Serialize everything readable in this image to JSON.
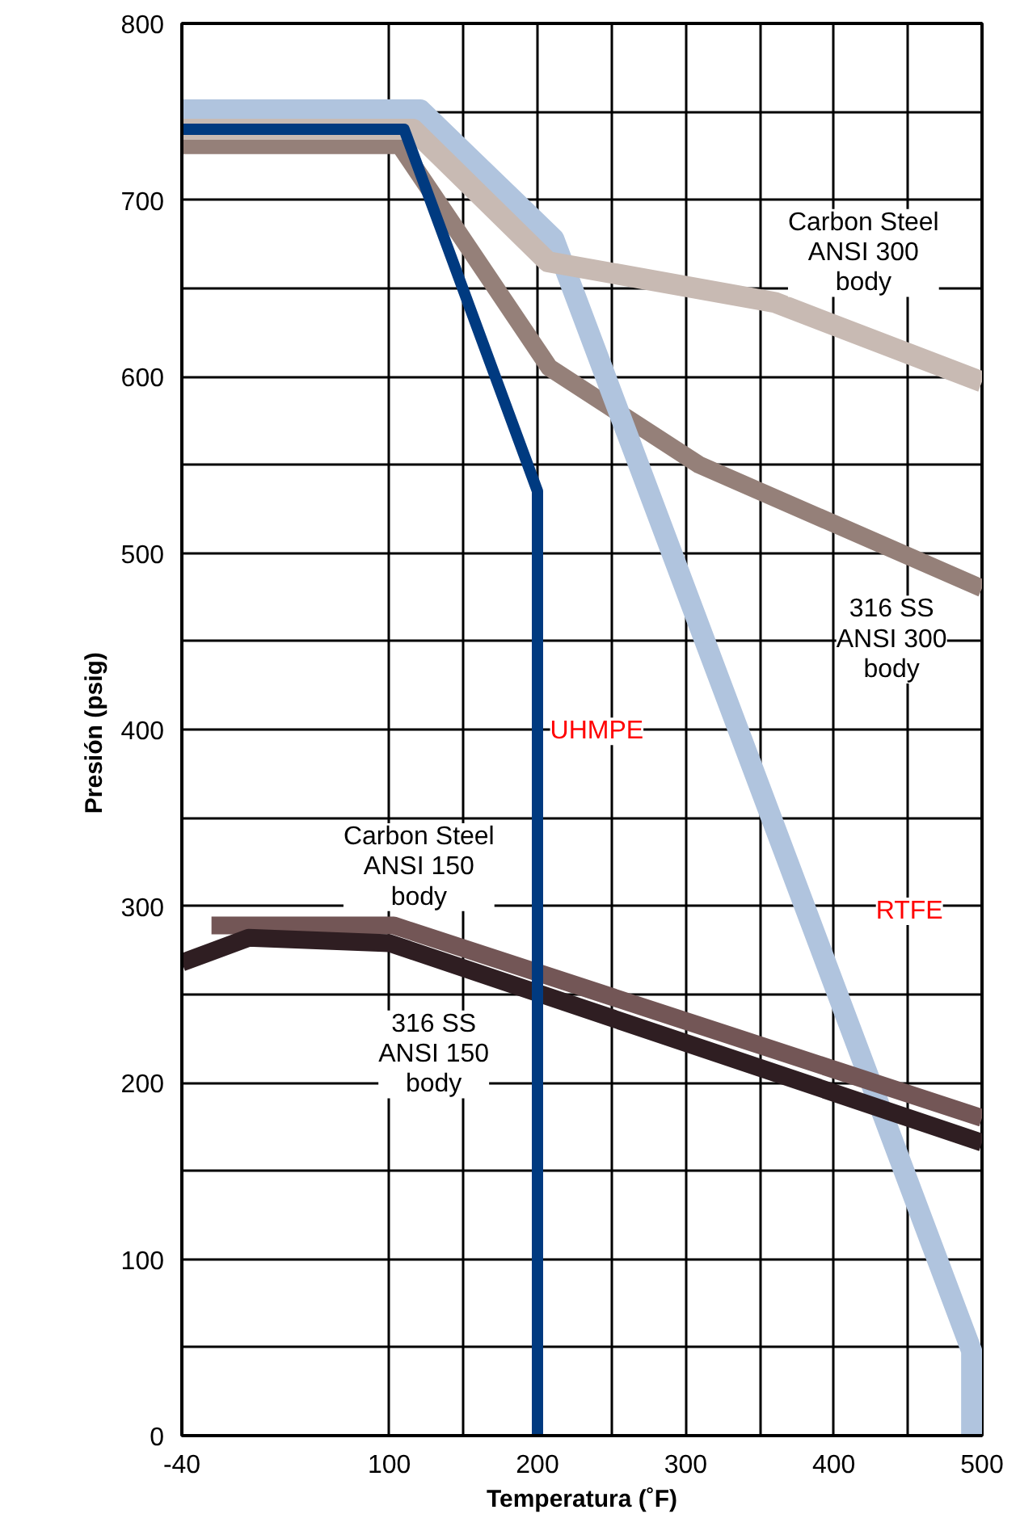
{
  "chart_data": {
    "type": "line",
    "xlabel": "Temperatura (˚F)",
    "ylabel": "Presión  (psig)",
    "xlim": [
      -40,
      500
    ],
    "ylim": [
      0,
      800
    ],
    "xticks": [
      -40,
      100,
      {
        "value": 150,
        "label": null
      },
      200,
      {
        "value": 250,
        "label": null
      },
      300,
      {
        "value": 350,
        "label": null
      },
      400,
      {
        "value": 450,
        "label": null
      },
      500
    ],
    "yticks": [
      0,
      {
        "value": 50,
        "label": null
      },
      100,
      {
        "value": 150,
        "label": null
      },
      200,
      {
        "value": 250,
        "label": null
      },
      300,
      {
        "value": 350,
        "label": null
      },
      400,
      {
        "value": 450,
        "label": null
      },
      500,
      {
        "value": 550,
        "label": null
      },
      600,
      {
        "value": 650,
        "label": null
      },
      700,
      {
        "value": 750,
        "label": null
      },
      800
    ],
    "grid": true,
    "marker": "none",
    "line_style": "solid",
    "series": [
      {
        "name": "316 SS\nANSI 300\nbody",
        "color": "#958079",
        "x": [
          -40,
          107,
          208,
          309,
          500
        ],
        "values": [
          731,
          731,
          605,
          550,
          480
        ]
      },
      {
        "name": "RTFE",
        "color": "#b0c4de",
        "x": [
          -40,
          121,
          211,
          493,
          493
        ],
        "values": [
          751,
          751,
          678,
          48,
          0
        ]
      },
      {
        "name": "Carbon Steel\nANSI 150\nbody",
        "color": "#735656",
        "x": [
          -20,
          103,
          500
        ],
        "values": [
          289,
          289,
          180
        ]
      },
      {
        "name": "316 SS\nANSI 150\nbody",
        "color": "#2f1e22",
        "x": [
          -40,
          5,
          100,
          500
        ],
        "values": [
          268,
          282,
          279,
          166
        ]
      },
      {
        "name": "Carbon Steel\nANSI 300\nbody",
        "color": "#c8bab3",
        "x": [
          -40,
          116,
          207,
          360,
          500
        ],
        "values": [
          740,
          740,
          665,
          642,
          597
        ]
      },
      {
        "name": "UHMPE",
        "color": "#003a80",
        "x": [
          -40,
          110,
          200,
          200
        ],
        "values": [
          740,
          740,
          535,
          0
        ]
      }
    ]
  }
}
